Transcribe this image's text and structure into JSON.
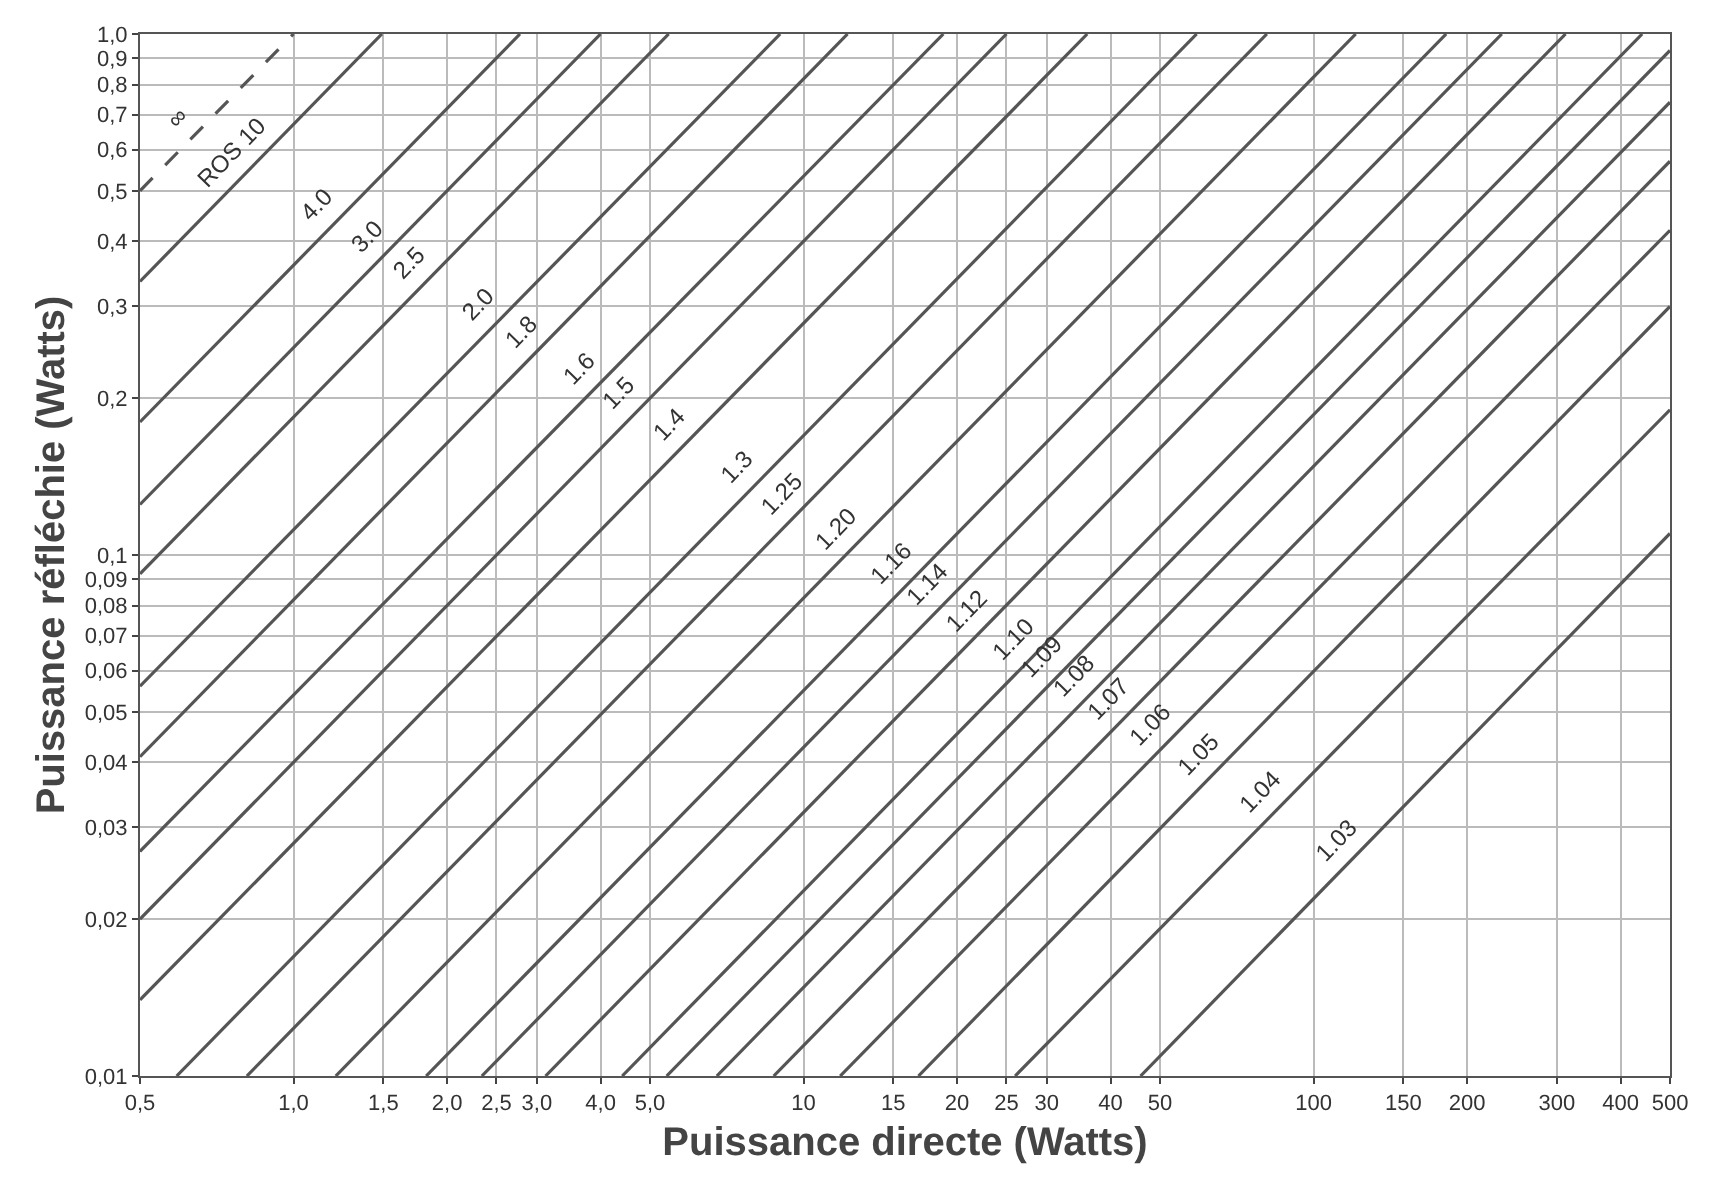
{
  "chart_data": {
    "type": "line",
    "xlabel": "Puissance directe (Watts)",
    "ylabel": "Puissance réfléchie (Watts)",
    "log": "xy",
    "grid": true,
    "legend": false,
    "marker": "none",
    "xlim": [
      0.5,
      500
    ],
    "ylim": [
      0.01,
      1
    ],
    "xticks": [
      {
        "value": 0.5,
        "label": "0,5"
      },
      {
        "value": 1,
        "label": "1,0"
      },
      {
        "value": 1.5,
        "label": "1,5"
      },
      {
        "value": 2,
        "label": "2,0"
      },
      {
        "value": 2.5,
        "label": "2,5"
      },
      {
        "value": 3,
        "label": "3,0"
      },
      {
        "value": 4,
        "label": "4,0"
      },
      {
        "value": 5,
        "label": "5,0"
      },
      10,
      15,
      20,
      25,
      30,
      40,
      50,
      100,
      150,
      200,
      300,
      400,
      500
    ],
    "yticks": [
      {
        "value": 0.01,
        "label": "0,01"
      },
      {
        "value": 0.02,
        "label": "0,02"
      },
      {
        "value": 0.03,
        "label": "0,03"
      },
      {
        "value": 0.04,
        "label": "0,04"
      },
      {
        "value": 0.05,
        "label": "0,05"
      },
      {
        "value": 0.06,
        "label": "0,06"
      },
      {
        "value": 0.07,
        "label": "0,07"
      },
      {
        "value": 0.08,
        "label": "0,08"
      },
      {
        "value": 0.09,
        "label": "0,09"
      },
      {
        "value": 0.1,
        "label": "0,1"
      },
      {
        "value": 0.2,
        "label": "0,2"
      },
      {
        "value": 0.3,
        "label": "0,3"
      },
      {
        "value": 0.4,
        "label": "0,4"
      },
      {
        "value": 0.5,
        "label": "0,5"
      },
      {
        "value": 0.6,
        "label": "0,6"
      },
      {
        "value": 0.7,
        "label": "0,7"
      },
      {
        "value": 0.8,
        "label": "0,8"
      },
      {
        "value": 0.9,
        "label": "0,9"
      },
      {
        "value": 1,
        "label": "1,0"
      }
    ],
    "series": [
      {
        "name": "∞",
        "color": "#555555",
        "line_style": "dashed",
        "x": [
          0.5,
          1
        ],
        "values": [
          0.5,
          1
        ]
      },
      {
        "name": "ROS 10",
        "color": "#555555",
        "x": [
          0.5,
          1.49
        ],
        "values": [
          0.335,
          1
        ]
      },
      {
        "name": "4.0",
        "color": "#555555",
        "x": [
          0.5,
          2.78
        ],
        "values": [
          0.18,
          1
        ]
      },
      {
        "name": "3.0",
        "color": "#555555",
        "x": [
          0.5,
          4
        ],
        "values": [
          0.125,
          1
        ]
      },
      {
        "name": "2.5",
        "color": "#555555",
        "x": [
          0.5,
          5.44
        ],
        "values": [
          0.092,
          1
        ]
      },
      {
        "name": "2.0",
        "color": "#555555",
        "x": [
          0.5,
          9
        ],
        "values": [
          0.056,
          1
        ]
      },
      {
        "name": "1.8",
        "color": "#555555",
        "x": [
          0.5,
          12.2
        ],
        "values": [
          0.041,
          1
        ]
      },
      {
        "name": "1.6",
        "color": "#555555",
        "x": [
          0.5,
          18.8
        ],
        "values": [
          0.027,
          1
        ]
      },
      {
        "name": "1.5",
        "color": "#555555",
        "x": [
          0.5,
          25
        ],
        "values": [
          0.02,
          1
        ]
      },
      {
        "name": "1.4",
        "color": "#555555",
        "x": [
          0.5,
          36
        ],
        "values": [
          0.014,
          1
        ]
      },
      {
        "name": "1.3",
        "color": "#555555",
        "x": [
          0.59,
          59
        ],
        "values": [
          0.01,
          1
        ]
      },
      {
        "name": "1.25",
        "color": "#555555",
        "x": [
          0.81,
          81
        ],
        "values": [
          0.01,
          1
        ]
      },
      {
        "name": "1.20",
        "color": "#555555",
        "x": [
          1.21,
          121
        ],
        "values": [
          0.01,
          1
        ]
      },
      {
        "name": "1.16",
        "color": "#555555",
        "x": [
          1.82,
          182
        ],
        "values": [
          0.01,
          1
        ]
      },
      {
        "name": "1.14",
        "color": "#555555",
        "x": [
          2.34,
          234
        ],
        "values": [
          0.01,
          1
        ]
      },
      {
        "name": "1.12",
        "color": "#555555",
        "x": [
          3.12,
          312
        ],
        "values": [
          0.01,
          1
        ]
      },
      {
        "name": "1.10",
        "color": "#555555",
        "x": [
          4.41,
          441
        ],
        "values": [
          0.01,
          1
        ]
      },
      {
        "name": "1.09",
        "color": "#555555",
        "x": [
          5.39,
          500
        ],
        "values": [
          0.01,
          0.93
        ]
      },
      {
        "name": "1.08",
        "color": "#555555",
        "x": [
          6.76,
          500
        ],
        "values": [
          0.01,
          0.74
        ]
      },
      {
        "name": "1.07",
        "color": "#555555",
        "x": [
          8.74,
          500
        ],
        "values": [
          0.01,
          0.57
        ]
      },
      {
        "name": "1.06",
        "color": "#555555",
        "x": [
          11.8,
          500
        ],
        "values": [
          0.01,
          0.42
        ]
      },
      {
        "name": "1.05",
        "color": "#555555",
        "x": [
          16.8,
          500
        ],
        "values": [
          0.01,
          0.3
        ]
      },
      {
        "name": "1.04",
        "color": "#555555",
        "x": [
          26,
          500
        ],
        "values": [
          0.01,
          0.19
        ]
      },
      {
        "name": "1.03",
        "color": "#555555",
        "x": [
          45.8,
          500
        ],
        "values": [
          0.01,
          0.11
        ]
      }
    ]
  }
}
